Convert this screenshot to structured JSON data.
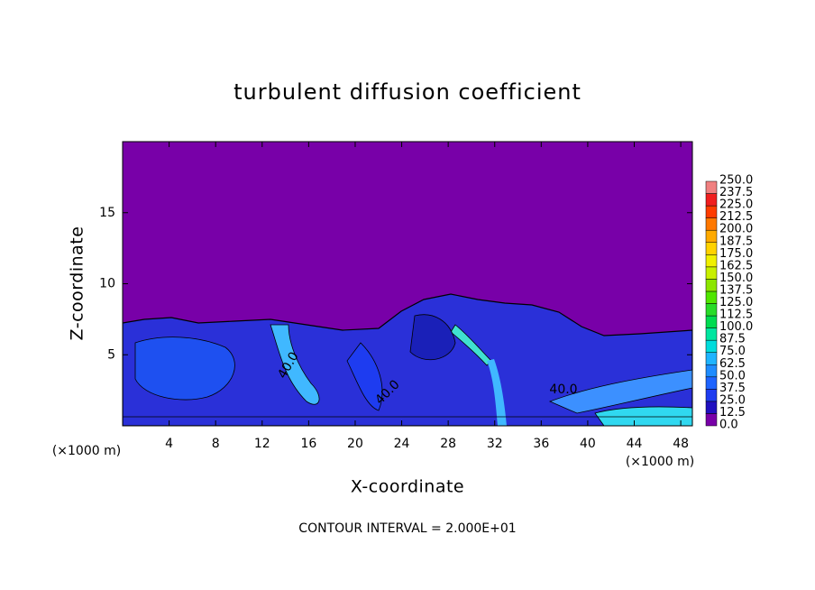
{
  "chart_data": {
    "type": "contour",
    "title": "turbulent diffusion coefficient",
    "x_label": "X-coordinate",
    "y_label": "Z-coordinate",
    "x_unit": "(×1000 m)",
    "footer": "CONTOUR INTERVAL = 2.000E+01",
    "contour_labels": [
      "40.0",
      "40.0",
      "40.0"
    ],
    "xlim": [
      0,
      49
    ],
    "xticks": [
      4,
      8,
      12,
      16,
      20,
      24,
      28,
      32,
      36,
      40,
      44,
      48
    ],
    "ylim": [
      0,
      20
    ],
    "yticks": [
      5,
      10,
      15
    ],
    "colorbar": {
      "levels": [
        {
          "value": 0,
          "label": "0.0"
        },
        {
          "value": 12.5,
          "label": "12.5"
        },
        {
          "value": 25,
          "label": "25.0"
        },
        {
          "value": 37.5,
          "label": "37.5"
        },
        {
          "value": 50,
          "label": "50.0"
        },
        {
          "value": 62.5,
          "label": "62.5"
        },
        {
          "value": 75,
          "label": "75.0"
        },
        {
          "value": 87.5,
          "label": "87.5"
        },
        {
          "value": 100,
          "label": "100.0"
        },
        {
          "value": 112.5,
          "label": "112.5"
        },
        {
          "value": 125,
          "label": "125.0"
        },
        {
          "value": 137.5,
          "label": "137.5"
        },
        {
          "value": 150,
          "label": "150.0"
        },
        {
          "value": 162.5,
          "label": "162.5"
        },
        {
          "value": 175,
          "label": "175.0"
        },
        {
          "value": 187.5,
          "label": "187.5"
        },
        {
          "value": 200,
          "label": "200.0"
        },
        {
          "value": 212.5,
          "label": "212.5"
        },
        {
          "value": 225,
          "label": "225.0"
        },
        {
          "value": 237.5,
          "label": "237.5"
        },
        {
          "value": 250,
          "label": "250.0"
        }
      ],
      "colors": [
        "#7800a8",
        "#2010c0",
        "#1e3cf0",
        "#1e64ff",
        "#1e8cff",
        "#1eb4ff",
        "#00dcdc",
        "#00e6a0",
        "#00dc50",
        "#28dc28",
        "#50e600",
        "#8ce600",
        "#c8f000",
        "#f0f000",
        "#ffd200",
        "#ffaa00",
        "#ff7800",
        "#ff3c00",
        "#f01e1e",
        "#f08080"
      ]
    }
  }
}
